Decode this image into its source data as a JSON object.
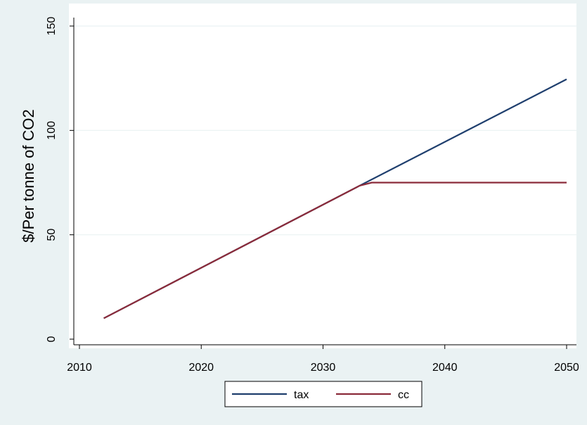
{
  "chart_data": {
    "type": "line",
    "title": "",
    "xlabel": "",
    "ylabel": "$/Per tonne of CO2",
    "xlim": [
      2012,
      2050
    ],
    "ylim": [
      0,
      150
    ],
    "xticks": [
      2010,
      2020,
      2030,
      2040,
      2050
    ],
    "yticks": [
      0,
      50,
      100,
      150
    ],
    "grid": "horizontal",
    "legend_position": "bottom",
    "series": [
      {
        "name": "tax",
        "color": "#1f3f6e",
        "points": [
          [
            2012,
            10
          ],
          [
            2033,
            73.5
          ],
          [
            2050,
            124.5
          ]
        ]
      },
      {
        "name": "cc",
        "color": "#8b2b3a",
        "points": [
          [
            2012,
            10
          ],
          [
            2033,
            73.5
          ],
          [
            2034,
            75
          ],
          [
            2050,
            75
          ]
        ]
      }
    ]
  },
  "style": {
    "outer_bg": "#eaf2f3",
    "plot_bg": "#ffffff",
    "grid_color": "#eaf2f3",
    "axis_color": "#000000"
  }
}
